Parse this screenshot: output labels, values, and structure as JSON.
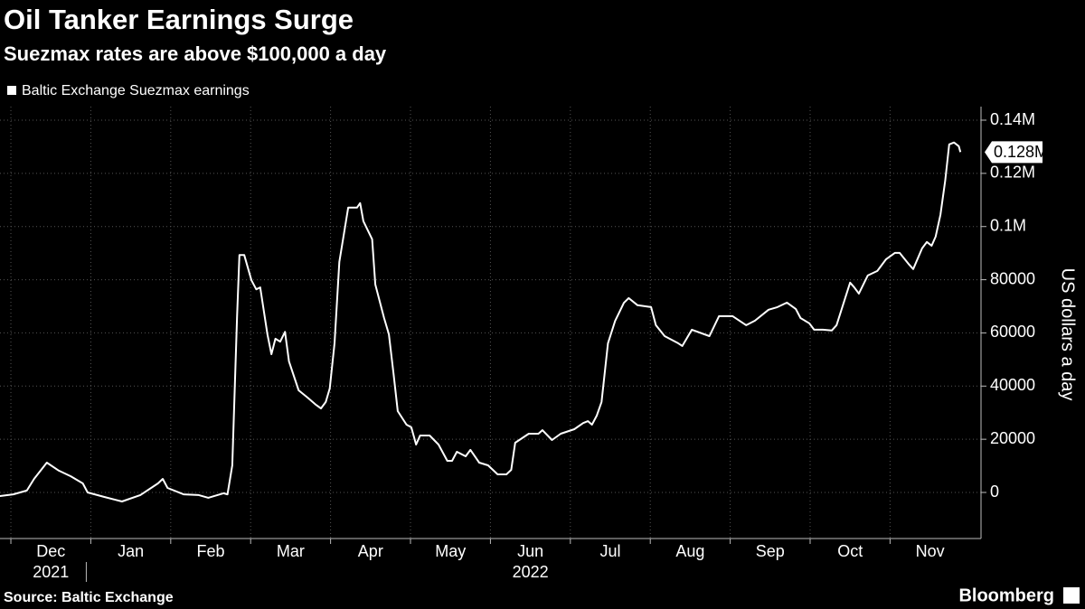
{
  "chart_data": {
    "type": "line",
    "title": "Oil Tanker Earnings Surge",
    "subtitle": "Suezmax rates are above $100,000 a day",
    "y_axis_label": "US dollars a day",
    "source": "Source: Baltic Exchange",
    "brand": "Bloomberg",
    "legend": "top-left",
    "grid": true,
    "xlim": [
      -0.136,
      12.138
    ],
    "xticks": [
      {
        "value": 0,
        "label": "Dec"
      },
      {
        "value": 1,
        "label": "Jan"
      },
      {
        "value": 2,
        "label": "Feb"
      },
      {
        "value": 3,
        "label": "Mar"
      },
      {
        "value": 4,
        "label": "Apr"
      },
      {
        "value": 5,
        "label": "May"
      },
      {
        "value": 6,
        "label": "Jun"
      },
      {
        "value": 7,
        "label": "Jul"
      },
      {
        "value": 8,
        "label": "Aug"
      },
      {
        "value": 9,
        "label": "Sep"
      },
      {
        "value": 10,
        "label": "Oct"
      },
      {
        "value": 11,
        "label": "Nov"
      }
    ],
    "year_labels": [
      {
        "value": 0,
        "label": "2021"
      },
      {
        "value": 6,
        "label": "2022"
      }
    ],
    "ylim": [
      -17330,
      145100
    ],
    "yticks": [
      0,
      20000,
      40000,
      60000,
      80000,
      {
        "value": 100000,
        "label": "0.1M"
      },
      {
        "value": 120000,
        "label": "0.12M"
      },
      {
        "value": 140000,
        "label": "0.14M"
      }
    ],
    "x": [
      -0.14,
      0.03,
      0.2,
      0.29,
      0.45,
      0.6,
      0.75,
      0.9,
      0.96,
      1.17,
      1.39,
      1.62,
      1.84,
      1.9,
      1.96,
      2.16,
      2.35,
      2.47,
      2.66,
      2.71,
      2.77,
      2.83,
      2.86,
      2.92,
      3.01,
      3.07,
      3.12,
      3.21,
      3.26,
      3.31,
      3.37,
      3.43,
      3.48,
      3.6,
      3.71,
      3.82,
      3.88,
      3.94,
      3.99,
      4.05,
      4.11,
      4.22,
      4.33,
      4.37,
      4.41,
      4.52,
      4.56,
      4.67,
      4.73,
      4.79,
      4.84,
      4.95,
      5.01,
      5.07,
      5.12,
      5.24,
      5.35,
      5.46,
      5.52,
      5.58,
      5.69,
      5.75,
      5.86,
      5.97,
      6.09,
      6.2,
      6.26,
      6.31,
      6.48,
      6.6,
      6.65,
      6.77,
      6.88,
      7.05,
      7.16,
      7.22,
      7.27,
      7.33,
      7.39,
      7.47,
      7.56,
      7.67,
      7.73,
      7.84,
      8.01,
      8.07,
      8.18,
      8.35,
      8.4,
      8.52,
      8.74,
      8.86,
      9.03,
      9.2,
      9.31,
      9.48,
      9.59,
      9.71,
      9.82,
      9.88,
      9.99,
      10.05,
      10.16,
      10.27,
      10.33,
      10.5,
      10.55,
      10.61,
      10.72,
      10.84,
      10.95,
      11.06,
      11.12,
      11.23,
      11.29,
      11.4,
      11.46,
      11.52,
      11.57,
      11.63,
      11.69,
      11.74,
      11.8,
      11.86,
      11.88
    ],
    "series": [
      {
        "name": "Baltic Exchange Suezmax earnings",
        "color": "#ffffff",
        "values": [
          -1400,
          -700,
          700,
          5100,
          11200,
          8200,
          6100,
          3400,
          0,
          -1700,
          -3400,
          -1000,
          3400,
          5100,
          1700,
          -700,
          -1000,
          -2000,
          -300,
          -700,
          10200,
          66200,
          89300,
          89300,
          79800,
          76400,
          77100,
          59400,
          52000,
          57800,
          56700,
          60400,
          49300,
          38400,
          35700,
          32900,
          31600,
          34000,
          39100,
          56100,
          86700,
          107100,
          107100,
          108800,
          102000,
          95200,
          78200,
          65600,
          59500,
          44200,
          30600,
          25500,
          24500,
          18000,
          21400,
          21400,
          18000,
          11900,
          11900,
          15300,
          13600,
          16000,
          11200,
          10200,
          6800,
          6800,
          8500,
          18700,
          22100,
          22100,
          23400,
          19700,
          22100,
          23800,
          26100,
          26800,
          25500,
          28900,
          34000,
          56100,
          64500,
          71300,
          73100,
          70400,
          69700,
          62900,
          58800,
          56100,
          55100,
          61200,
          58800,
          66300,
          66300,
          62900,
          64600,
          68700,
          69700,
          71400,
          69000,
          65600,
          63600,
          61200,
          61200,
          60900,
          62900,
          78900,
          77200,
          74800,
          81600,
          83300,
          87700,
          90100,
          90100,
          86000,
          84000,
          91800,
          94200,
          92800,
          96200,
          104400,
          117300,
          130900,
          131600,
          130200,
          128000
        ],
        "value_labels": [
          null,
          null,
          null,
          null,
          null,
          null,
          null,
          null,
          null,
          null,
          null,
          null,
          null,
          null,
          null,
          null,
          null,
          null,
          null,
          null,
          null,
          null,
          null,
          null,
          null,
          null,
          null,
          null,
          null,
          null,
          null,
          null,
          null,
          null,
          null,
          null,
          null,
          null,
          null,
          null,
          null,
          null,
          null,
          null,
          null,
          null,
          null,
          null,
          null,
          null,
          null,
          null,
          null,
          null,
          null,
          null,
          null,
          null,
          null,
          null,
          null,
          null,
          null,
          null,
          null,
          null,
          null,
          null,
          null,
          null,
          null,
          null,
          null,
          null,
          null,
          null,
          null,
          null,
          null,
          null,
          null,
          null,
          null,
          null,
          null,
          null,
          null,
          null,
          null,
          null,
          null,
          null,
          null,
          null,
          null,
          null,
          null,
          null,
          null,
          null,
          null,
          null,
          null,
          null,
          null,
          null,
          null,
          null,
          null,
          null,
          null,
          null,
          null,
          null,
          null,
          null,
          null,
          null,
          null,
          null,
          null,
          null,
          null,
          null,
          "0.128M"
        ]
      }
    ]
  }
}
